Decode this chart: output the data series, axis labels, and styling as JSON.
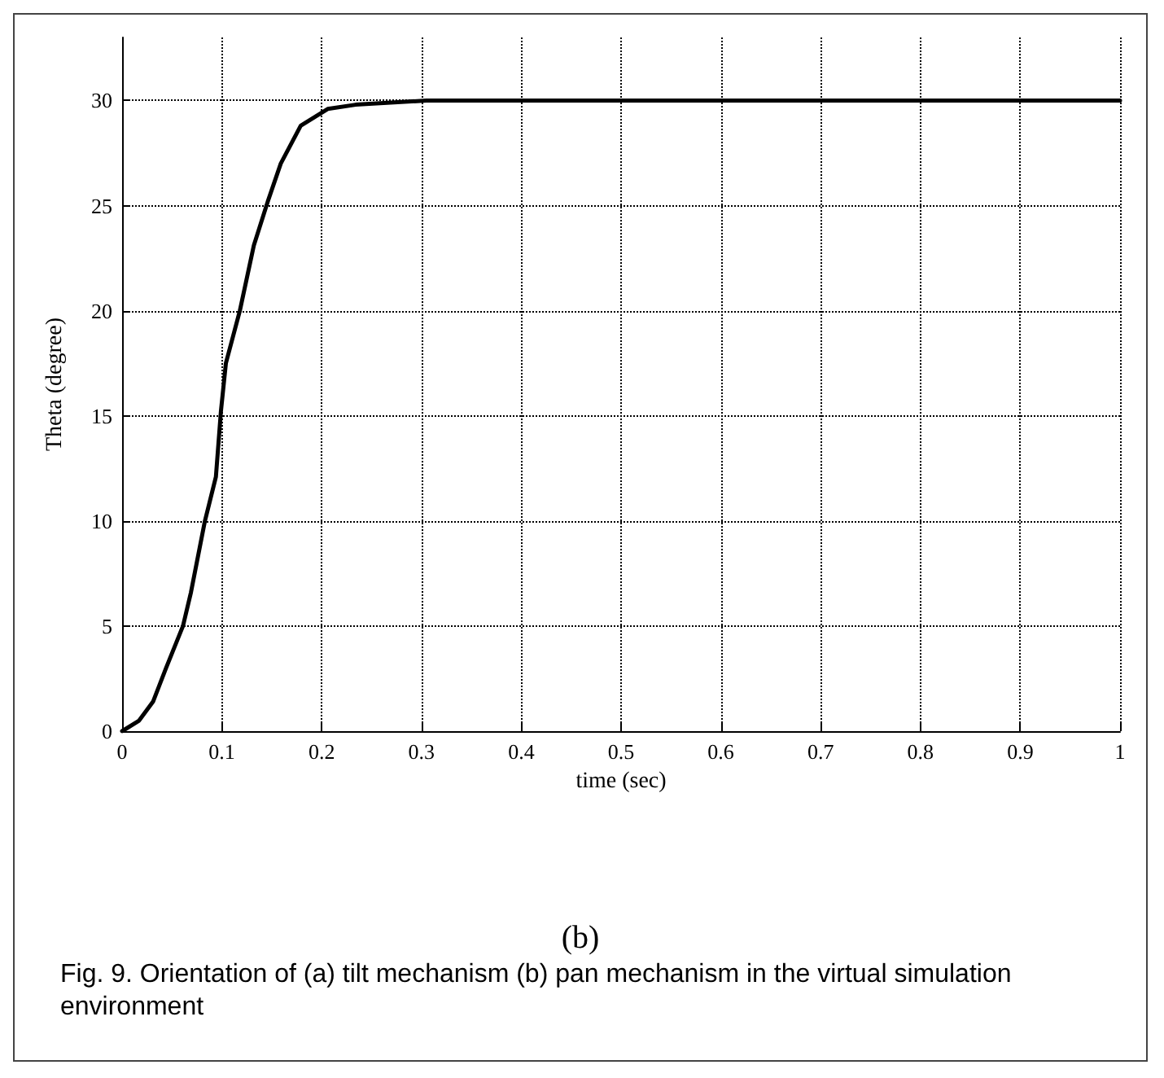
{
  "chart_data": {
    "type": "line",
    "xlabel": "time (sec)",
    "ylabel": "Theta (degree)",
    "subtitle": "(b)",
    "annotations": [
      "Fig. 9. Orientation of (a) tilt mechanism (b) pan mechanism in the virtual simulation environment"
    ],
    "x": [
      0,
      0.017,
      0.031,
      0.044,
      0.061,
      0.069,
      0.083,
      0.094,
      0.099,
      0.104,
      0.118,
      0.132,
      0.146,
      0.159,
      0.179,
      0.206,
      0.234,
      0.305,
      0.4,
      0.6,
      0.8,
      1
    ],
    "series": [
      {
        "color": "#000000",
        "values": [
          0,
          0.5,
          1.4,
          3.0,
          5,
          6.6,
          10,
          12.1,
          15.2,
          17.5,
          20,
          23.1,
          25.2,
          27,
          28.8,
          29.6,
          29.8,
          30,
          30,
          30,
          30,
          30
        ]
      }
    ],
    "xlim": [
      0,
      1
    ],
    "xticks": [
      0,
      0.1,
      0.2,
      0.3,
      0.4,
      0.5,
      0.6,
      0.7,
      0.8,
      0.9,
      1
    ],
    "ylim": [
      0,
      33
    ],
    "yticks": [
      0,
      5,
      10,
      15,
      20,
      25,
      30
    ],
    "grid": true,
    "marker": "none",
    "line_style": "solid"
  }
}
